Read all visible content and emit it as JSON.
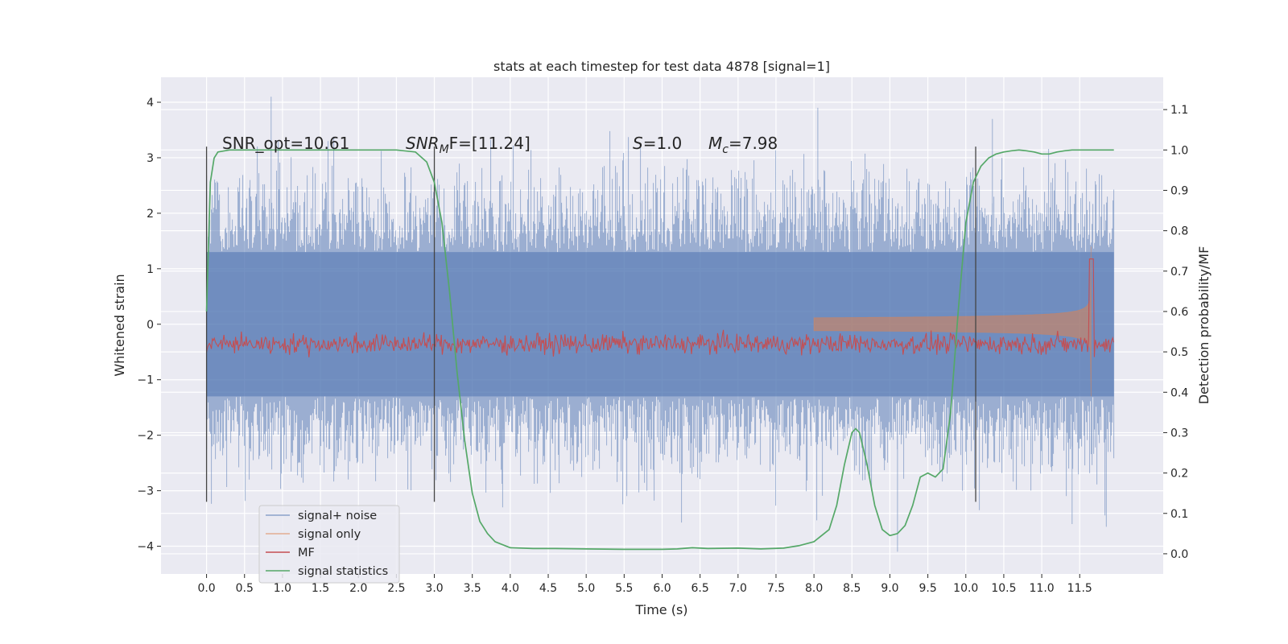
{
  "chart_data": {
    "type": "line",
    "title": "stats at each timestep for test data 4878 [signal=1]",
    "xlabel": "Time (s)",
    "ylabel": "Whitened strain",
    "y2label": "Detection probability/MF",
    "xlim": [
      -0.6,
      12.6
    ],
    "ylim": [
      -4.5,
      4.45
    ],
    "y2lim": [
      -0.05,
      1.18
    ],
    "grid": true,
    "legend_position": "lower-left",
    "x_ticks": [
      "0.0",
      "0.5",
      "1.0",
      "1.5",
      "2.0",
      "2.5",
      "3.0",
      "3.5",
      "4.0",
      "4.5",
      "5.0",
      "5.5",
      "6.0",
      "6.5",
      "7.0",
      "7.5",
      "8.0",
      "8.5",
      "9.0",
      "9.5",
      "10.0",
      "10.5",
      "11.0",
      "11.5"
    ],
    "y_ticks": [
      4,
      3,
      2,
      1,
      0,
      -1,
      -2,
      -3,
      -4
    ],
    "y_tick_labels": [
      "4",
      "3",
      "2",
      "1",
      "0",
      "−1",
      "−2",
      "−3",
      "−4"
    ],
    "y2_ticks": [
      "1.1",
      "1.0",
      "0.9",
      "0.8",
      "0.7",
      "0.6",
      "0.5",
      "0.4",
      "0.3",
      "0.2",
      "0.1",
      "0.0"
    ],
    "annotations": {
      "snr_opt": "SNR_opt=10.61",
      "snr_mf_main": "SNR",
      "snr_mf_sub": "M",
      "snr_mf_rest": "F=[11.24]",
      "s_italic": "S",
      "s_rest": "=1.0",
      "mc_italic": "M",
      "mc_sub": "c",
      "mc_rest": "=7.98"
    },
    "vertical_markers": [
      0.0,
      3.0,
      10.13
    ],
    "series": [
      {
        "name": "signal+ noise",
        "color": "#4c72b0",
        "x_range": [
          0.0,
          11.95
        ],
        "amplitude_band": [
          -1.3,
          1.3
        ],
        "peak": [
          4.1,
          -4.1
        ]
      },
      {
        "name": "signal only",
        "color": "#dd8452",
        "chirp_start": 8.0,
        "chirp_peak_time": 11.65,
        "chirp_peak": 1.4
      },
      {
        "name": "MF",
        "color": "#c44e52",
        "axis": "y2",
        "baseline": 0.52,
        "spike_time": 11.65,
        "spike": 0.73
      },
      {
        "name": "signal statistics",
        "color": "#55a868",
        "axis": "y2",
        "x": [
          0.0,
          0.05,
          0.1,
          0.15,
          0.3,
          0.6,
          1.0,
          1.5,
          2.0,
          2.5,
          2.75,
          2.9,
          3.0,
          3.1,
          3.2,
          3.3,
          3.4,
          3.5,
          3.6,
          3.7,
          3.8,
          4.0,
          4.3,
          4.6,
          5.0,
          5.5,
          6.0,
          6.2,
          6.4,
          6.6,
          7.0,
          7.3,
          7.6,
          7.8,
          8.0,
          8.2,
          8.3,
          8.4,
          8.5,
          8.55,
          8.6,
          8.7,
          8.8,
          8.9,
          9.0,
          9.1,
          9.2,
          9.3,
          9.4,
          9.5,
          9.6,
          9.7,
          9.8,
          9.9,
          10.0,
          10.1,
          10.2,
          10.3,
          10.4,
          10.5,
          10.6,
          10.7,
          10.8,
          10.9,
          11.0,
          11.1,
          11.2,
          11.3,
          11.4,
          11.5,
          11.6,
          11.7,
          11.8,
          11.95
        ],
        "y": [
          0.6,
          0.92,
          0.98,
          0.995,
          1.0,
          1.0,
          1.0,
          1.0,
          1.0,
          1.0,
          0.995,
          0.97,
          0.92,
          0.82,
          0.65,
          0.45,
          0.28,
          0.15,
          0.08,
          0.05,
          0.03,
          0.015,
          0.013,
          0.013,
          0.012,
          0.011,
          0.011,
          0.012,
          0.015,
          0.013,
          0.014,
          0.012,
          0.014,
          0.02,
          0.03,
          0.06,
          0.12,
          0.22,
          0.3,
          0.31,
          0.3,
          0.22,
          0.12,
          0.06,
          0.045,
          0.05,
          0.07,
          0.12,
          0.19,
          0.2,
          0.19,
          0.21,
          0.35,
          0.6,
          0.82,
          0.92,
          0.96,
          0.98,
          0.99,
          0.995,
          0.998,
          1.0,
          0.998,
          0.995,
          0.99,
          0.99,
          0.995,
          0.998,
          1.0,
          1.0,
          1.0,
          1.0,
          1.0,
          1.0
        ]
      }
    ]
  }
}
